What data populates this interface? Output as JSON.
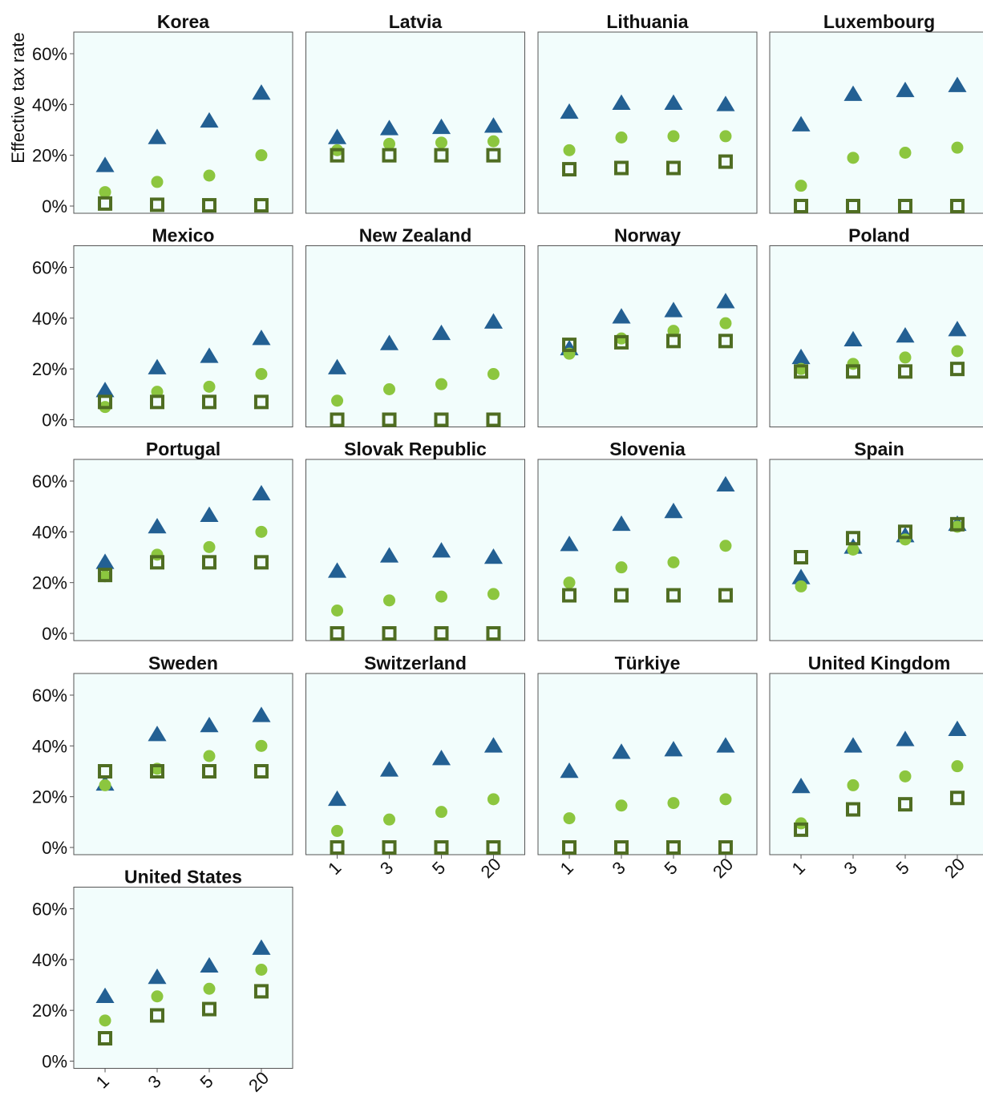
{
  "chart_data": {
    "type": "scatter",
    "ylabel": "Effective tax rate",
    "ylim": [
      0,
      0.68
    ],
    "yticks": [
      0,
      0.2,
      0.4,
      0.6
    ],
    "ytick_labels": [
      "0%",
      "20%",
      "40%",
      "60%"
    ],
    "categories": [
      "1",
      "3",
      "5",
      "20"
    ],
    "grid": false,
    "panel_background": "#f2fdfc",
    "colors": {
      "triangle": "#236093",
      "circle": "#8cc63f",
      "square": "#4f6d22"
    },
    "panels": [
      {
        "title": "Korea",
        "triangle": [
          0.16,
          0.27,
          0.335,
          0.445
        ],
        "circle": [
          0.055,
          0.095,
          0.12,
          0.2
        ],
        "square": [
          0.01,
          0.005,
          0.003,
          0.003
        ]
      },
      {
        "title": "Latvia",
        "triangle": [
          0.27,
          0.305,
          0.31,
          0.315
        ],
        "circle": [
          0.22,
          0.245,
          0.25,
          0.255
        ],
        "square": [
          0.2,
          0.2,
          0.2,
          0.2
        ]
      },
      {
        "title": "Lithuania",
        "triangle": [
          0.37,
          0.405,
          0.405,
          0.4
        ],
        "circle": [
          0.22,
          0.27,
          0.275,
          0.275
        ],
        "square": [
          0.145,
          0.15,
          0.15,
          0.175
        ]
      },
      {
        "title": "Luxembourg",
        "triangle": [
          0.32,
          0.44,
          0.455,
          0.475
        ],
        "circle": [
          0.08,
          0.19,
          0.21,
          0.23
        ],
        "square": [
          0.0,
          0.0,
          0.0,
          0.0
        ]
      },
      {
        "title": "Mexico",
        "triangle": [
          0.115,
          0.205,
          0.25,
          0.32
        ],
        "circle": [
          0.05,
          0.11,
          0.13,
          0.18
        ],
        "square": [
          0.07,
          0.07,
          0.07,
          0.07
        ]
      },
      {
        "title": "New Zealand",
        "triangle": [
          0.205,
          0.3,
          0.34,
          0.385
        ],
        "circle": [
          0.075,
          0.12,
          0.14,
          0.18
        ],
        "square": [
          0.0,
          0.0,
          0.0,
          0.0
        ]
      },
      {
        "title": "Norway",
        "triangle": [
          0.28,
          0.405,
          0.43,
          0.465
        ],
        "circle": [
          0.26,
          0.32,
          0.35,
          0.38
        ],
        "square": [
          0.295,
          0.305,
          0.31,
          0.31
        ]
      },
      {
        "title": "Poland",
        "triangle": [
          0.245,
          0.315,
          0.33,
          0.355
        ],
        "circle": [
          0.2,
          0.22,
          0.245,
          0.27
        ],
        "square": [
          0.19,
          0.19,
          0.19,
          0.2
        ]
      },
      {
        "title": "Portugal",
        "triangle": [
          0.28,
          0.42,
          0.465,
          0.55
        ],
        "circle": [
          0.225,
          0.31,
          0.34,
          0.4
        ],
        "square": [
          0.23,
          0.28,
          0.28,
          0.28
        ]
      },
      {
        "title": "Slovak Republic",
        "triangle": [
          0.245,
          0.305,
          0.325,
          0.3
        ],
        "circle": [
          0.09,
          0.13,
          0.145,
          0.155
        ],
        "square": [
          0.0,
          0.0,
          0.0,
          0.0
        ]
      },
      {
        "title": "Slovenia",
        "triangle": [
          0.35,
          0.43,
          0.48,
          0.585
        ],
        "circle": [
          0.2,
          0.26,
          0.28,
          0.345
        ],
        "square": [
          0.15,
          0.15,
          0.15,
          0.15
        ]
      },
      {
        "title": "Spain",
        "triangle": [
          0.22,
          0.34,
          0.385,
          0.43
        ],
        "circle": [
          0.185,
          0.33,
          0.37,
          0.42
        ],
        "square": [
          0.3,
          0.375,
          0.4,
          0.43
        ]
      },
      {
        "title": "Sweden",
        "triangle": [
          0.25,
          0.445,
          0.48,
          0.52
        ],
        "circle": [
          0.245,
          0.31,
          0.36,
          0.4
        ],
        "square": [
          0.3,
          0.3,
          0.3,
          0.3
        ]
      },
      {
        "title": "Switzerland",
        "triangle": [
          0.19,
          0.305,
          0.35,
          0.4
        ],
        "circle": [
          0.065,
          0.11,
          0.14,
          0.19
        ],
        "square": [
          0.0,
          0.0,
          0.0,
          0.0
        ]
      },
      {
        "title": "Türkiye",
        "triangle": [
          0.3,
          0.375,
          0.385,
          0.4
        ],
        "circle": [
          0.115,
          0.165,
          0.175,
          0.19
        ],
        "square": [
          0.0,
          0.0,
          0.0,
          0.0
        ]
      },
      {
        "title": "United Kingdom",
        "triangle": [
          0.24,
          0.4,
          0.425,
          0.465
        ],
        "circle": [
          0.095,
          0.245,
          0.28,
          0.32
        ],
        "square": [
          0.07,
          0.15,
          0.17,
          0.195
        ]
      },
      {
        "title": "United States",
        "triangle": [
          0.255,
          0.33,
          0.375,
          0.445
        ],
        "circle": [
          0.16,
          0.255,
          0.285,
          0.36
        ],
        "square": [
          0.09,
          0.18,
          0.205,
          0.275
        ]
      }
    ]
  }
}
